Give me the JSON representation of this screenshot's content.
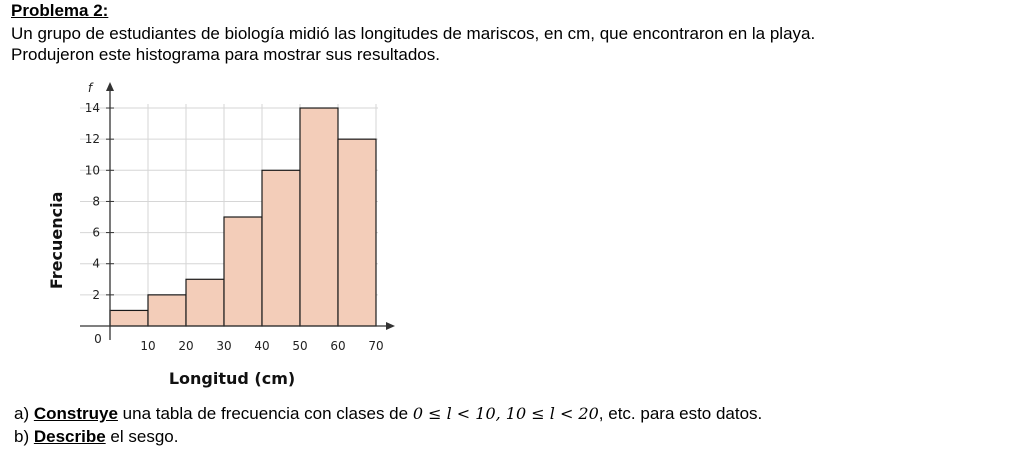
{
  "problem": {
    "title": "Problema 2:",
    "intro_line1": "Un grupo de estudiantes de biología midió las longitudes de mariscos, en cm, que encontraron en la playa.",
    "intro_line2": "Produjeron este histograma para mostrar sus resultados."
  },
  "chart_data": {
    "type": "bar",
    "title": "",
    "xlabel": "Longitud (cm)",
    "ylabel": "Frecuencia",
    "y_axis_symbol": "f",
    "origin_label": "0",
    "bins": [
      [
        0,
        10
      ],
      [
        10,
        20
      ],
      [
        20,
        30
      ],
      [
        30,
        40
      ],
      [
        40,
        50
      ],
      [
        50,
        60
      ],
      [
        60,
        70
      ]
    ],
    "values": [
      1,
      2,
      3,
      7,
      10,
      14,
      12
    ],
    "x_ticks": [
      10,
      20,
      30,
      40,
      50,
      60,
      70
    ],
    "y_ticks": [
      2,
      4,
      6,
      8,
      10,
      12,
      14
    ],
    "xlim": [
      0,
      70
    ],
    "ylim": [
      0,
      14
    ],
    "grid": true,
    "bar_color": "#f3cdb9",
    "bar_edge_color": "#1a1a1a"
  },
  "questions": [
    {
      "marker": "a)",
      "verb": "Construye",
      "text_before": " una tabla de frecuencia con clases de ",
      "math": "0 ≤ l < 10, 10 ≤ l < 20",
      "text_after": ", etc. para esto datos."
    },
    {
      "marker": "b)",
      "verb": "Describe",
      "text_before": " el sesgo.",
      "math": "",
      "text_after": ""
    }
  ]
}
